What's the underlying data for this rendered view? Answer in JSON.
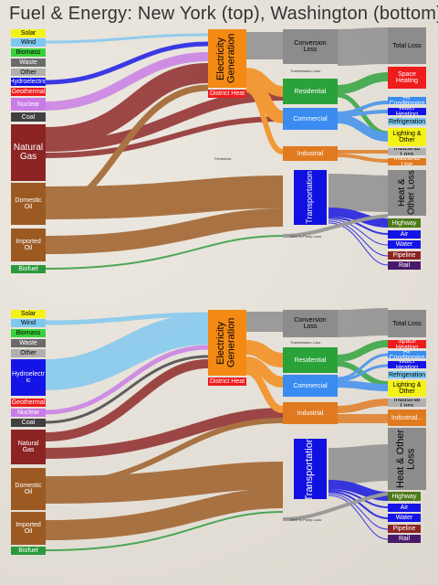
{
  "title": "Fuel & Energy: New York (top), Washington (bottom)",
  "colors": {
    "solar": "#f5f21a",
    "wind": "#7ec8f0",
    "biomass": "#39d23a",
    "waste": "#6b6b6b",
    "other": "#b0b0b0",
    "hydro": "#1414e6",
    "geothermal": "#ee1c1c",
    "nuclear": "#c97be6",
    "coal": "#404040",
    "gas": "#8c2424",
    "oil": "#9c5a22",
    "biofuel": "#2a9a3a",
    "electricity": "#f48a14",
    "grey": "#8c8c8c",
    "residential": "#2aa23a",
    "commercial": "#3a8cf0",
    "industrial": "#e07a20",
    "transport": "#1010e0"
  },
  "sources": {
    "solar": "Solar",
    "wind": "Wind",
    "biomass": "Biomass",
    "waste": "Waste",
    "other": "Other",
    "hydroelectric": "Hydroelectric",
    "hydroelectric_wa": "Hydroelectr ic",
    "geothermal": "Geothermal",
    "nuclear": "Nuclear",
    "coal": "Coal",
    "natural_gas": "Natural Gas",
    "domestic_oil": "Domestic Oil",
    "imported_oil": "Imported Oil",
    "biofuel": "Biofuel"
  },
  "middle": {
    "electricity_generation": "Electricity Generation",
    "district_heat": "District Heat",
    "conversion_loss": "Conversion Loss",
    "transmission_loss": "Transmission Loss",
    "residential": "Residential",
    "commercial": "Commercial",
    "industrial": "Industrial",
    "transportation": "Transportation",
    "feedstock": "Feedstock",
    "well_to_pump_loss": "Well To Pump Loss"
  },
  "uses": {
    "total_loss": "Total Loss",
    "space_heating": "Space Heating",
    "air_conditioning": "Air Conditioning",
    "water_heating": "Water Heating",
    "refrigeration": "Refrigeration",
    "lighting_other": "Lighting & Other",
    "industrial_loss": "Industrial Loss",
    "industrial_use": "Industrial Use",
    "industrial_use_wa": "Industrial...",
    "heat_other_loss": "Heat & Other Loss",
    "highway": "Highway",
    "air": "Air",
    "water": "Water",
    "pipeline": "Pipeline",
    "rail": "Rail"
  }
}
